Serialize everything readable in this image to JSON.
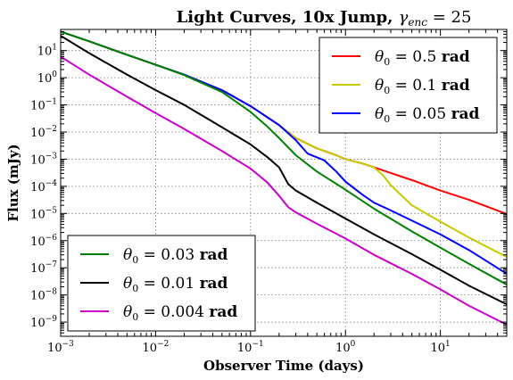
{
  "chart_data": {
    "type": "line",
    "title_main": "Light Curves, 10x Jump, ",
    "title_math": "γ",
    "title_math_sub": "enc",
    "title_math_tail": " = 25",
    "xlabel": "Observer Time (days)",
    "ylabel": "Flux (mJy)",
    "x_scale": "log",
    "y_scale": "log",
    "xlim": [
      0.001,
      50
    ],
    "ylim": [
      3e-10,
      60
    ],
    "grid": true,
    "x_ticks": [
      {
        "base": "10",
        "exp": "−3",
        "value": 0.001
      },
      {
        "base": "10",
        "exp": "−2",
        "value": 0.01
      },
      {
        "base": "10",
        "exp": "−1",
        "value": 0.1
      },
      {
        "base": "10",
        "exp": "0",
        "value": 1
      },
      {
        "base": "10",
        "exp": "1",
        "value": 10
      }
    ],
    "y_ticks": [
      {
        "base": "10",
        "exp": "1",
        "value": 10
      },
      {
        "base": "10",
        "exp": "0",
        "value": 1
      },
      {
        "base": "10",
        "exp": "−1",
        "value": 0.1
      },
      {
        "base": "10",
        "exp": "−2",
        "value": 0.01
      },
      {
        "base": "10",
        "exp": "−3",
        "value": 0.001
      },
      {
        "base": "10",
        "exp": "−4",
        "value": 0.0001
      },
      {
        "base": "10",
        "exp": "−5",
        "value": 1e-05
      },
      {
        "base": "10",
        "exp": "−6",
        "value": 1e-06
      },
      {
        "base": "10",
        "exp": "−7",
        "value": 1e-07
      },
      {
        "base": "10",
        "exp": "−8",
        "value": 1e-08
      },
      {
        "base": "10",
        "exp": "−9",
        "value": 1e-09
      }
    ],
    "legend_upper": {
      "placement": "top-right",
      "series": [
        0,
        1,
        2
      ]
    },
    "legend_lower": {
      "placement": "bottom-left",
      "series": [
        3,
        4,
        5
      ]
    },
    "series": [
      {
        "name_math": "θ",
        "name_sub": "0",
        "name_value": " = 0.5 ",
        "name_unit": "rad",
        "color": "#ff0000",
        "points": [
          [
            0.001,
            50
          ],
          [
            0.002,
            22
          ],
          [
            0.005,
            7
          ],
          [
            0.01,
            3
          ],
          [
            0.02,
            1.3
          ],
          [
            0.05,
            0.35
          ],
          [
            0.1,
            0.09
          ],
          [
            0.2,
            0.018
          ],
          [
            0.3,
            0.006
          ],
          [
            0.5,
            0.0025
          ],
          [
            0.8,
            0.0014
          ],
          [
            1,
            0.001
          ],
          [
            1.5,
            0.0007
          ],
          [
            2,
            0.0005
          ],
          [
            3,
            0.00031
          ],
          [
            5,
            0.00017
          ],
          [
            10,
            7e-05
          ],
          [
            20,
            3.2e-05
          ],
          [
            50,
            9.5e-06
          ]
        ]
      },
      {
        "name_math": "θ",
        "name_sub": "0",
        "name_value": " = 0.1 ",
        "name_unit": "rad",
        "color": "#c8c800",
        "points": [
          [
            0.001,
            50
          ],
          [
            0.002,
            22
          ],
          [
            0.005,
            7
          ],
          [
            0.01,
            3
          ],
          [
            0.02,
            1.3
          ],
          [
            0.05,
            0.35
          ],
          [
            0.1,
            0.09
          ],
          [
            0.2,
            0.018
          ],
          [
            0.3,
            0.006
          ],
          [
            0.5,
            0.0025
          ],
          [
            0.8,
            0.0014
          ],
          [
            1,
            0.001
          ],
          [
            1.5,
            0.0007
          ],
          [
            2,
            0.0005
          ],
          [
            2.5,
            0.00025
          ],
          [
            3,
            0.00011
          ],
          [
            5,
            2e-05
          ],
          [
            10,
            5e-06
          ],
          [
            20,
            1.3e-06
          ],
          [
            50,
            2.5e-07
          ]
        ]
      },
      {
        "name_math": "θ",
        "name_sub": "0",
        "name_value": " = 0.05 ",
        "name_unit": "rad",
        "color": "#0000ff",
        "points": [
          [
            0.001,
            50
          ],
          [
            0.002,
            22
          ],
          [
            0.005,
            7
          ],
          [
            0.01,
            3
          ],
          [
            0.02,
            1.3
          ],
          [
            0.05,
            0.35
          ],
          [
            0.1,
            0.09
          ],
          [
            0.2,
            0.018
          ],
          [
            0.3,
            0.005
          ],
          [
            0.4,
            0.0016
          ],
          [
            0.6,
            0.0009
          ],
          [
            0.8,
            0.00035
          ],
          [
            1,
            0.00015
          ],
          [
            1.5,
            5e-05
          ],
          [
            2,
            2.5e-05
          ],
          [
            3,
            1.3e-05
          ],
          [
            5,
            5.5e-06
          ],
          [
            10,
            1.7e-06
          ],
          [
            20,
            4.5e-07
          ],
          [
            50,
            6e-08
          ]
        ]
      },
      {
        "name_math": "θ",
        "name_sub": "0",
        "name_value": " = 0.03 ",
        "name_unit": "rad",
        "color": "#008000",
        "points": [
          [
            0.001,
            50
          ],
          [
            0.002,
            22
          ],
          [
            0.005,
            7
          ],
          [
            0.01,
            3
          ],
          [
            0.02,
            1.25
          ],
          [
            0.05,
            0.3
          ],
          [
            0.1,
            0.055
          ],
          [
            0.15,
            0.016
          ],
          [
            0.2,
            0.006
          ],
          [
            0.3,
            0.0014
          ],
          [
            0.5,
            0.00035
          ],
          [
            1,
            7.5e-05
          ],
          [
            2,
            1.5e-05
          ],
          [
            5,
            2.2e-06
          ],
          [
            10,
            5.5e-07
          ],
          [
            20,
            1.4e-07
          ],
          [
            50,
            2.4e-08
          ]
        ]
      },
      {
        "name_math": "θ",
        "name_sub": "0",
        "name_value": " = 0.01 ",
        "name_unit": "rad",
        "color": "#000000",
        "points": [
          [
            0.001,
            35
          ],
          [
            0.002,
            8
          ],
          [
            0.005,
            1.3
          ],
          [
            0.01,
            0.35
          ],
          [
            0.02,
            0.1
          ],
          [
            0.05,
            0.015
          ],
          [
            0.1,
            0.0035
          ],
          [
            0.15,
            0.0012
          ],
          [
            0.2,
            0.0005
          ],
          [
            0.25,
            0.00012
          ],
          [
            0.3,
            7e-05
          ],
          [
            0.5,
            2.5e-05
          ],
          [
            1,
            6.5e-06
          ],
          [
            2,
            1.7e-06
          ],
          [
            5,
            3.2e-07
          ],
          [
            10,
            8.5e-08
          ],
          [
            20,
            2.2e-08
          ],
          [
            50,
            4.5e-09
          ]
        ]
      },
      {
        "name_math": "θ",
        "name_sub": "0",
        "name_value": " = 0.004 ",
        "name_unit": "rad",
        "color": "#c800c8",
        "points": [
          [
            0.001,
            6
          ],
          [
            0.002,
            1.3
          ],
          [
            0.005,
            0.2
          ],
          [
            0.01,
            0.05
          ],
          [
            0.02,
            0.013
          ],
          [
            0.05,
            0.002
          ],
          [
            0.1,
            0.00045
          ],
          [
            0.15,
            0.00014
          ],
          [
            0.2,
            4.5e-05
          ],
          [
            0.25,
            1.7e-05
          ],
          [
            0.3,
            1.1e-05
          ],
          [
            0.5,
            4.2e-06
          ],
          [
            1,
            1.2e-06
          ],
          [
            2,
            3e-07
          ],
          [
            5,
            6e-08
          ],
          [
            10,
            1.6e-08
          ],
          [
            20,
            4e-09
          ],
          [
            50,
            8e-10
          ]
        ]
      }
    ]
  }
}
